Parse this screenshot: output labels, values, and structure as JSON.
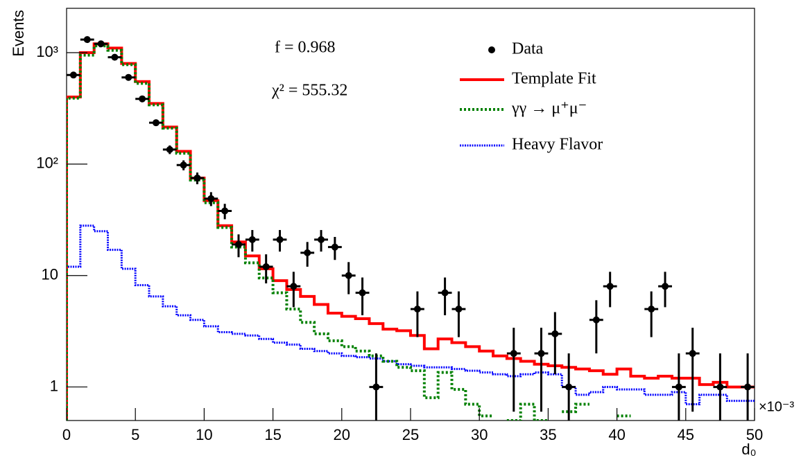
{
  "chart_data": {
    "type": "histogram",
    "y_label": "Events",
    "x_label": "d₀",
    "x_multiplier": "×10⁻³",
    "annotations": [
      "f = 0.968",
      "χ² = 555.32"
    ],
    "bins": [
      0,
      1,
      2,
      3,
      4,
      5,
      6,
      7,
      8,
      9,
      10,
      11,
      12,
      13,
      14,
      15,
      16,
      17,
      18,
      19,
      20,
      21,
      22,
      23,
      24,
      25,
      26,
      27,
      28,
      29,
      30,
      31,
      32,
      33,
      34,
      35,
      36,
      37,
      38,
      39,
      40,
      41,
      42,
      43,
      44,
      45,
      46,
      47,
      48,
      49,
      50
    ],
    "xlim": [
      0,
      50
    ],
    "xticks": [
      0,
      5,
      10,
      15,
      20,
      25,
      30,
      35,
      40,
      45,
      50
    ],
    "ylim": [
      0.5,
      2500
    ],
    "log_y": true,
    "yticks": [
      1,
      10,
      {
        "value": 100,
        "label": "10²"
      },
      {
        "value": 1000,
        "label": "10³"
      }
    ],
    "series": [
      {
        "name": "Data",
        "color": "#000000",
        "style": "points",
        "values": [
          630,
          1310,
          1200,
          910,
          600,
          385,
          235,
          135,
          98,
          75,
          49,
          38,
          19,
          21,
          12,
          21,
          8,
          16,
          21,
          18,
          10,
          7,
          1,
          null,
          null,
          5,
          null,
          7,
          5,
          null,
          null,
          null,
          2,
          null,
          2,
          3,
          1,
          null,
          4,
          8,
          null,
          null,
          5,
          8,
          1,
          2,
          null,
          1,
          null,
          1
        ],
        "errors": [
          25,
          36,
          35,
          30,
          24.5,
          20,
          15,
          12,
          10,
          9,
          7,
          6,
          4.4,
          4.6,
          3.5,
          4.6,
          2.8,
          4,
          4.6,
          4.2,
          3.2,
          2.6,
          1,
          null,
          null,
          2.2,
          null,
          2.6,
          2.2,
          null,
          null,
          null,
          1.4,
          null,
          1.4,
          1.7,
          1,
          null,
          2,
          2.8,
          null,
          null,
          2.2,
          2.8,
          1,
          1.4,
          null,
          1,
          null,
          1
        ]
      },
      {
        "name": "Template Fit",
        "color": "#ff0000",
        "style": "step",
        "values": [
          400,
          1000,
          1200,
          1100,
          800,
          550,
          350,
          215,
          130,
          75,
          47,
          28,
          20,
          15,
          11.5,
          9,
          7.5,
          6.5,
          5.5,
          4.6,
          4.3,
          4.1,
          3.7,
          3.3,
          3.2,
          2.9,
          2.2,
          2.7,
          2.5,
          2.3,
          2.1,
          1.9,
          1.8,
          1.7,
          1.6,
          1.55,
          1.5,
          1.45,
          1.4,
          1.3,
          1.45,
          1.25,
          1.2,
          1.25,
          1.2,
          1.2,
          1.05,
          1.1,
          1,
          1
        ]
      },
      {
        "name": "γγ → μ⁺μ⁻",
        "color": "#008000",
        "style": "dotted",
        "values": [
          390,
          950,
          1150,
          1050,
          780,
          530,
          340,
          210,
          125,
          72,
          45,
          27,
          18,
          13,
          9.5,
          7,
          5,
          3.8,
          3,
          2.6,
          2.3,
          2.1,
          1.9,
          1.7,
          1.5,
          1.4,
          0.8,
          1.35,
          0.95,
          0.7,
          0.55,
          null,
          0.5,
          0.7,
          0.5,
          null,
          0.6,
          0.7,
          null,
          null,
          0.55,
          null,
          null,
          null,
          null,
          null,
          null,
          null,
          null,
          null
        ]
      },
      {
        "name": "Heavy Flavor",
        "color": "#0000ff",
        "style": "fine-dotted",
        "values": [
          12,
          28,
          25,
          17,
          11.5,
          8.2,
          6.5,
          5.3,
          4.4,
          4,
          3.5,
          3.1,
          3,
          2.9,
          2.7,
          2.5,
          2.4,
          2.2,
          2.1,
          2,
          1.9,
          1.85,
          1.8,
          1.7,
          1.6,
          1.55,
          1.5,
          1.5,
          1.45,
          1.4,
          1.35,
          1.3,
          1.25,
          1.3,
          1.35,
          1.3,
          1,
          0.85,
          0.9,
          1,
          0.95,
          0.95,
          0.85,
          0.85,
          0.9,
          0.7,
          0.85,
          0.85,
          0.75,
          0.75
        ]
      }
    ]
  }
}
